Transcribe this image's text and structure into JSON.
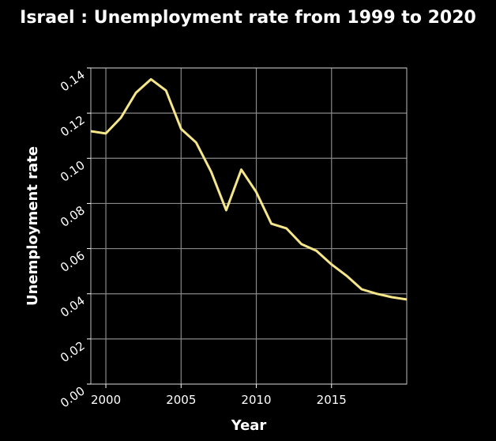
{
  "chart_data": {
    "type": "line",
    "title": "Israel : Unemployment rate from 1999 to 2020",
    "xlabel": "Year",
    "ylabel": "Unemployment rate",
    "xlim": [
      1999,
      2020
    ],
    "ylim": [
      0,
      0.14
    ],
    "xticks": [
      2000,
      2005,
      2010,
      2015
    ],
    "xtick_labels": [
      "2000",
      "2005",
      "2010",
      "2015"
    ],
    "yticks": [
      0,
      0.02,
      0.04,
      0.06,
      0.08,
      0.1,
      0.12,
      0.14
    ],
    "ytick_labels": [
      "0.00",
      "0.02",
      "0.04",
      "0.06",
      "0.08",
      "0.10",
      "0.12",
      "0.14"
    ],
    "grid": true,
    "line_color": "#f5e68a",
    "series": [
      {
        "x": [
          1999,
          2000,
          2001,
          2002,
          2003,
          2004,
          2005,
          2006,
          2007,
          2008,
          2009,
          2010,
          2011,
          2012,
          2013,
          2014,
          2015,
          2016,
          2017,
          2018,
          2019,
          2020
        ],
        "values": [
          0.112,
          0.111,
          0.118,
          0.129,
          0.135,
          0.13,
          0.113,
          0.107,
          0.094,
          0.077,
          0.095,
          0.085,
          0.071,
          0.069,
          0.062,
          0.059,
          0.053,
          0.048,
          0.042,
          0.04,
          0.0385,
          0.0375
        ]
      }
    ]
  }
}
